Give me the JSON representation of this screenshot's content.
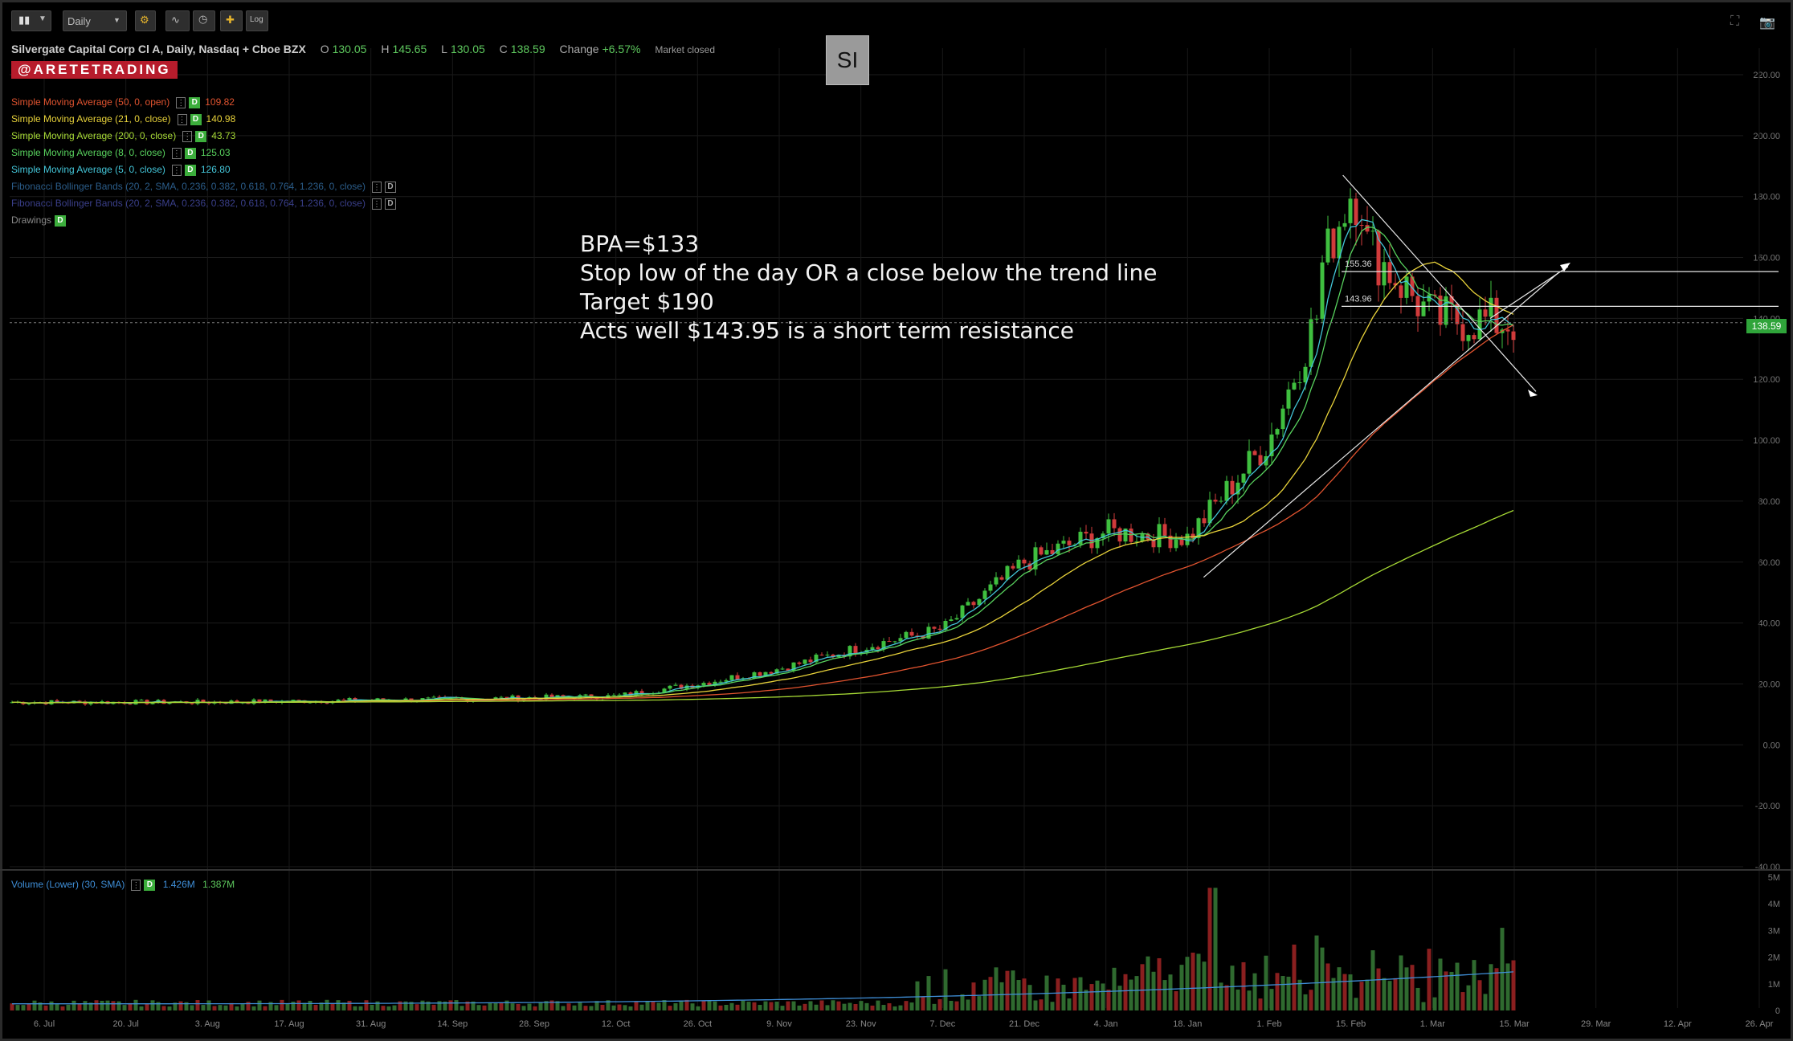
{
  "toolbar": {
    "timeframe": "Daily",
    "log_label": "Log"
  },
  "header": {
    "title": "Silvergate Capital Corp Cl A, Daily, Nasdaq + Cboe BZX",
    "o_label": "O",
    "o_value": "130.05",
    "h_label": "H",
    "h_value": "145.65",
    "l_label": "L",
    "l_value": "130.05",
    "c_label": "C",
    "c_value": "138.59",
    "change_label": "Change",
    "change_value": "+6.57%",
    "market_status": "Market closed"
  },
  "brand": "@ARETETRADING",
  "ticker": "SI",
  "studies": [
    {
      "label": "Simple Moving Average (50, 0, open)",
      "value": "109.82",
      "color": "#e0532f"
    },
    {
      "label": "Simple Moving Average (21, 0, close)",
      "value": "140.98",
      "color": "#e8d23a"
    },
    {
      "label": "Simple Moving Average (200, 0, close)",
      "value": "43.73",
      "color": "#a6d935"
    },
    {
      "label": "Simple Moving Average (8, 0, close)",
      "value": "125.03",
      "color": "#58d25e"
    },
    {
      "label": "Simple Moving Average (5, 0, close)",
      "value": "126.80",
      "color": "#43c5d8"
    },
    {
      "label": "Fibonacci Bollinger Bands (20, 2, SMA, 0.236, 0.382, 0.618, 0.764, 1.236, 0, close)",
      "value": "",
      "color": "#2b5d8a"
    },
    {
      "label": "Fibonacci Bollinger Bands (20, 2, SMA, 0.236, 0.382, 0.618, 0.764, 1.236, 0, close)",
      "value": "",
      "color": "#3a3f8a"
    },
    {
      "label": "Drawings",
      "value": "",
      "color": "#888888"
    }
  ],
  "annotation": [
    "BPA=$133",
    "Stop low of the day OR a close below the trend line",
    "Target $190",
    "Acts well $143.95 is a short term resistance"
  ],
  "level_labels": [
    "155.36",
    "143.96"
  ],
  "last_price_tag": "138.59",
  "volume_legend": {
    "label": "Volume (Lower) (30, SMA)",
    "v1": "1.426M",
    "v2": "1.387M"
  },
  "chart_data": {
    "type": "candlestick",
    "y_axis": {
      "ticks": [
        "220.00",
        "200.00",
        "180.00",
        "160.00",
        "140.00",
        "120.00",
        "100.00",
        "80.00",
        "60.00",
        "40.00",
        "20.00",
        "0.00",
        "-20.00",
        "-40.00"
      ],
      "ylim": [
        -40,
        220
      ]
    },
    "x_ticks": [
      "6. Jul",
      "20. Jul",
      "3. Aug",
      "17. Aug",
      "31. Aug",
      "14. Sep",
      "28. Sep",
      "12. Oct",
      "26. Oct",
      "9. Nov",
      "23. Nov",
      "7. Dec",
      "21. Dec",
      "4. Jan",
      "18. Jan",
      "1. Feb",
      "15. Feb",
      "1. Mar",
      "15. Mar",
      "29. Mar",
      "12. Apr",
      "26. Apr"
    ],
    "volume_ticks": [
      "5M",
      "4M",
      "3M",
      "2M",
      "1M",
      "0"
    ],
    "horizontal_levels": [
      155.36,
      143.96
    ],
    "last_close": 138.59,
    "key_price_path": [
      {
        "date": "6. Jul",
        "close": 14
      },
      {
        "date": "3. Aug",
        "close": 14
      },
      {
        "date": "14. Sep",
        "close": 15
      },
      {
        "date": "12. Oct",
        "close": 16
      },
      {
        "date": "26. Oct",
        "close": 20
      },
      {
        "date": "9. Nov",
        "close": 25
      },
      {
        "date": "23. Nov",
        "close": 32
      },
      {
        "date": "7. Dec",
        "close": 38
      },
      {
        "date": "21. Dec",
        "close": 60
      },
      {
        "date": "4. Jan",
        "close": 70
      },
      {
        "date": "18. Jan",
        "close": 68
      },
      {
        "date": "1. Feb",
        "close": 100
      },
      {
        "date": "15. Feb",
        "close": 170
      },
      {
        "date": "1. Mar",
        "close": 140
      },
      {
        "date": "15. Mar",
        "close": 138.59
      }
    ]
  }
}
